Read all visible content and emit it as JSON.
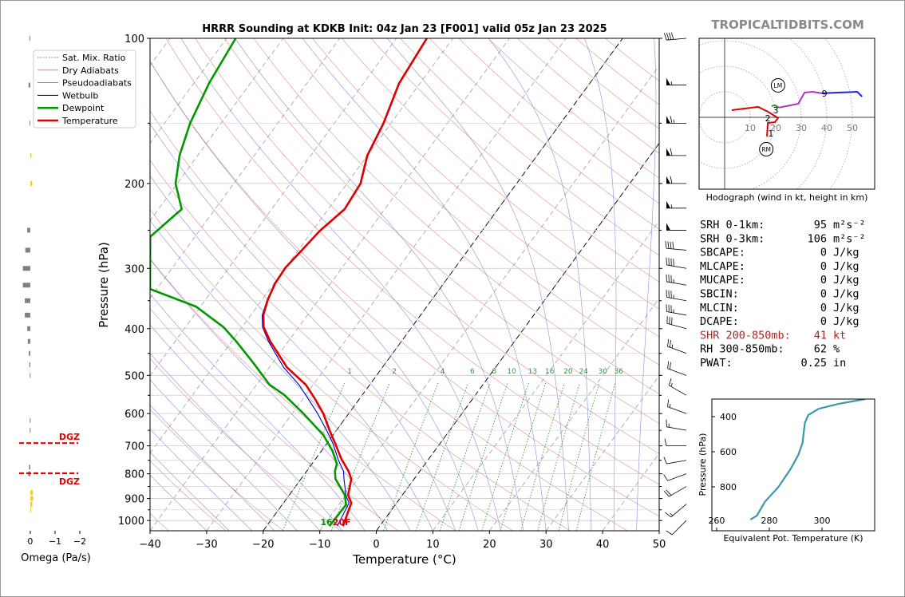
{
  "site": "TROPICALTIDBITS.COM",
  "chart_data": [
    {
      "type": "skewt",
      "title": "HRRR Sounding at KDKB Init: 04z Jan 23 [F001] valid 05z Jan 23 2025",
      "xlabel": "Temperature (°C)",
      "ylabel": "Pressure (hPa)",
      "xlim": [
        -40,
        50
      ],
      "xticks": [
        {
          "value": -40,
          "label": "−40"
        },
        {
          "value": -30,
          "label": "−30"
        },
        {
          "value": -20,
          "label": "−20"
        },
        {
          "value": -10,
          "label": "−10"
        },
        0,
        10,
        20,
        30,
        40,
        50
      ],
      "ylim": [
        1050,
        100
      ],
      "log_y": true,
      "yticks": [
        100,
        200,
        300,
        400,
        500,
        600,
        700,
        800,
        900,
        1000
      ],
      "yminor": [
        150,
        250,
        350,
        450,
        550,
        650,
        750,
        850,
        950
      ],
      "grid": true,
      "legend": "upper left",
      "highlight_isotherms": [
        0,
        -20
      ],
      "mixing_ratios": [
        1,
        2,
        4,
        6,
        8,
        10,
        13,
        16,
        20,
        24,
        30,
        36
      ],
      "background_lines": [
        {
          "name": "Sat. Mix. Ratio",
          "color": "#2e9a3e",
          "linestyle": "dotted"
        },
        {
          "name": "Dry Adiabats",
          "color": "#e07070",
          "linestyle": "solid"
        },
        {
          "name": "Pseudoadiabats",
          "color": "#7070d8",
          "linestyle": "solid"
        }
      ],
      "series": [
        {
          "name": "Wetbulb",
          "color": "#0000cc",
          "style": "thin",
          "pressure": [
            1027,
            920,
            885,
            820,
            790,
            746,
            691,
            652,
            600,
            560,
            523,
            481,
            425,
            397,
            375,
            348,
            322,
            299,
            273,
            251,
            226,
            200,
            175,
            150,
            124,
            100
          ],
          "values": [
            -7.5,
            -8.4,
            -10,
            -12.4,
            -13.5,
            -16,
            -19,
            -21.6,
            -25.5,
            -29,
            -32.5,
            -37.5,
            -43.5,
            -46.4,
            -48,
            -49.1,
            -49.9,
            -50.1,
            -49.4,
            -48.8,
            -47.2,
            -47.7,
            -50.1,
            -51.4,
            -53.8,
            -54.7
          ]
        },
        {
          "name": "Dewpoint",
          "color": "#009900",
          "style": "thick",
          "pressure": [
            1027,
            927,
            885,
            820,
            790,
            763,
            718,
            665,
            600,
            549,
            523,
            472,
            425,
            397,
            360,
            331,
            258,
            226,
            200,
            175,
            150,
            124,
            100
          ],
          "values": [
            -8.9,
            -8.7,
            -10.2,
            -13.9,
            -15,
            -15.6,
            -18,
            -21.7,
            -28,
            -33.8,
            -37.7,
            -43.3,
            -49.2,
            -53.3,
            -60.8,
            -71.2,
            -77.9,
            -75.9,
            -80.3,
            -83.2,
            -85.5,
            -87.3,
            -88.4
          ]
        },
        {
          "name": "Temperature",
          "color": "#e00000",
          "style": "thick",
          "pressure": [
            1027,
            920,
            885,
            820,
            790,
            746,
            691,
            652,
            600,
            560,
            523,
            481,
            425,
            397,
            375,
            348,
            322,
            299,
            273,
            251,
            226,
            200,
            175,
            150,
            124,
            100
          ],
          "values": [
            -6.5,
            -8,
            -9.6,
            -11.1,
            -12.6,
            -15.4,
            -18.6,
            -21.1,
            -24.5,
            -27.8,
            -31.3,
            -36.9,
            -43.2,
            -46.2,
            -47.8,
            -49,
            -49.8,
            -50,
            -49.3,
            -48.7,
            -47.1,
            -47.6,
            -50,
            -51.3,
            -53.7,
            -54.6
          ]
        }
      ],
      "surface_dewpoint_f": 16,
      "surface_temperature_label": "20F",
      "wind_barbs": {
        "pressure": [
          100,
          125,
          150,
          175,
          200,
          225,
          250,
          275,
          300,
          325,
          350,
          375,
          400,
          450,
          500,
          550,
          600,
          650,
          700,
          750,
          800,
          850,
          925,
          1000
        ],
        "speed": [
          40,
          55,
          65,
          60,
          60,
          55,
          50,
          40,
          40,
          35,
          35,
          35,
          30,
          25,
          20,
          15,
          15,
          15,
          10,
          10,
          10,
          20,
          15,
          10
        ],
        "direction": [
          265,
          270,
          270,
          270,
          270,
          270,
          270,
          275,
          280,
          280,
          280,
          280,
          285,
          290,
          290,
          300,
          290,
          280,
          270,
          260,
          250,
          240,
          230,
          225
        ]
      }
    },
    {
      "type": "omega",
      "xlabel": "Omega (Pa/s)",
      "xlim": [
        0.9,
        -2
      ],
      "xticks": [
        0,
        {
          "value": -1,
          "label": "−1"
        },
        {
          "value": -2,
          "label": "−2"
        }
      ],
      "ylim": [
        1050,
        100
      ],
      "positive_color": "#808080",
      "negative_color": "#f2d032",
      "pressure": [
        100,
        125,
        150,
        175,
        200,
        250,
        275,
        300,
        325,
        350,
        375,
        400,
        425,
        450,
        475,
        500,
        620,
        650,
        775,
        800,
        875,
        900,
        925,
        950
      ],
      "values": [
        0.03,
        0.07,
        0.03,
        -0.05,
        -0.08,
        0.12,
        0.2,
        0.3,
        0.3,
        0.22,
        0.22,
        0.12,
        0.1,
        0.06,
        0.04,
        0.02,
        0.02,
        0.02,
        0.05,
        0.08,
        -0.1,
        -0.12,
        -0.08,
        -0.03
      ],
      "dgz": {
        "label": "DGZ",
        "color": "#e00000",
        "pressure": [
          691,
          798
        ]
      }
    },
    {
      "type": "hodograph",
      "caption": "Hodograph (wind in kt, height in km)",
      "xlim": [
        -10,
        58.75
      ],
      "ylim": [
        -28.1,
        30.9
      ],
      "rings": [
        10,
        20,
        30,
        40,
        50
      ],
      "segments": [
        {
          "color": "#e00000",
          "u": [
            2.8,
            13.1,
            16.9,
            20.9,
            19.7,
            16.9,
            16.6
          ],
          "v": [
            2.8,
            4.1,
            2.2,
            -0.3,
            -1.9,
            -2.2,
            -7.5
          ]
        },
        {
          "color": "#20a020",
          "u": [
            18.4,
            19.7,
            21.3
          ],
          "v": [
            4.4,
            4.7,
            3.8
          ]
        },
        {
          "color": "#b030c0",
          "u": [
            21.3,
            28.8,
            31.3,
            34.4,
            38.1
          ],
          "v": [
            3.8,
            5.3,
            9.7,
            10,
            9.4
          ]
        },
        {
          "color": "#2020e0",
          "u": [
            38.1,
            51.9,
            53.8
          ],
          "v": [
            9.4,
            10,
            8.1
          ]
        }
      ],
      "storm_motions": [
        {
          "label": "LM",
          "u": 20.9,
          "v": 12.5
        },
        {
          "label": "RM",
          "u": 16.3,
          "v": -12.5
        }
      ],
      "height_labels": [
        {
          "label": "1",
          "u": 18.1,
          "v": -6.3
        },
        {
          "label": "2",
          "u": 16.9,
          "v": -0.3
        },
        {
          "label": "3",
          "u": 20,
          "v": 2.8
        },
        {
          "label": "9",
          "u": 39.1,
          "v": 9.4
        }
      ]
    },
    {
      "type": "line",
      "xlabel": "Equivalent Pot. Temperature (K)",
      "ylabel": "Pressure (hPa)",
      "xlim": [
        258.2,
        320
      ],
      "xticks": [
        260,
        280,
        300
      ],
      "ylim": [
        1050,
        300
      ],
      "yticks": [
        400,
        600,
        800
      ],
      "color": "#3a97b0",
      "pressure": [
        986,
        964,
        886,
        800,
        700,
        618,
        550,
        436,
        391,
        355,
        327,
        300
      ],
      "values": [
        272.8,
        275.3,
        278.3,
        283.5,
        288,
        291,
        292.6,
        293.5,
        294.8,
        298.8,
        306.4,
        316.4
      ]
    }
  ],
  "parameters": {
    "rows": [
      {
        "label": "SRH 0-1km:",
        "value": 95,
        "unit": "m²s⁻²"
      },
      {
        "label": "SRH 0-3km:",
        "value": 106,
        "unit": "m²s⁻²"
      },
      {
        "label": "SBCAPE:",
        "value": 0,
        "unit": "J/kg"
      },
      {
        "label": "MLCAPE:",
        "value": 0,
        "unit": "J/kg"
      },
      {
        "label": "MUCAPE:",
        "value": 0,
        "unit": "J/kg"
      },
      {
        "label": "SBCIN:",
        "value": 0,
        "unit": "J/kg"
      },
      {
        "label": "MLCIN:",
        "value": 0,
        "unit": "J/kg"
      },
      {
        "label": "DCAPE:",
        "value": 0,
        "unit": "J/kg"
      },
      {
        "label": "SHR 200-850mb:",
        "value": 41,
        "unit": "kt",
        "color": "#b22222"
      },
      {
        "label": "RH 300-850mb:",
        "value": 62,
        "unit": "%"
      },
      {
        "label": "PWAT:",
        "value": 0.25,
        "unit": "in"
      }
    ]
  }
}
